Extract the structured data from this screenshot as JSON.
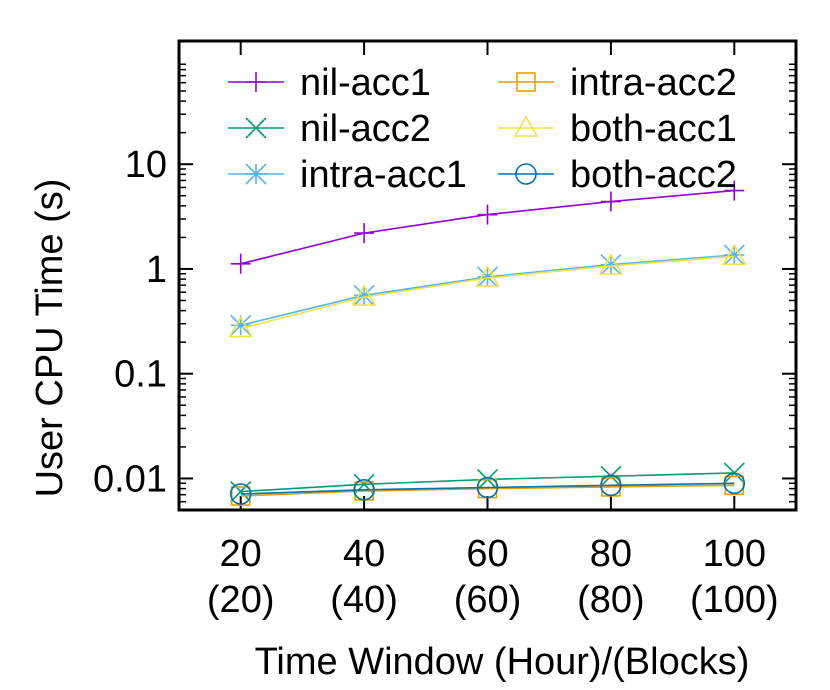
{
  "chart_data": {
    "type": "line",
    "ylabel": "User CPU Time (s)",
    "xlabel": "Time Window (Hour)/(Blocks)",
    "yscale": "log",
    "ylim": [
      0.005,
      150
    ],
    "xlim": [
      10,
      110
    ],
    "grid": false,
    "legend_position": "top-left",
    "x": [
      20,
      40,
      60,
      80,
      100
    ],
    "x_tick_labels": [
      {
        "line1": "20",
        "line2": "(20)"
      },
      {
        "line1": "40",
        "line2": "(40)"
      },
      {
        "line1": "60",
        "line2": "(60)"
      },
      {
        "line1": "80",
        "line2": "(80)"
      },
      {
        "line1": "100",
        "line2": "(100)"
      }
    ],
    "y_ticks": [
      {
        "value": 10,
        "label": "10"
      },
      {
        "value": 1,
        "label": "1"
      },
      {
        "value": 0.1,
        "label": "0.1"
      },
      {
        "value": 0.01,
        "label": "0.01"
      }
    ],
    "series": [
      {
        "name": "nil-acc1",
        "color": "#9400d3",
        "marker": "plus",
        "values": [
          1.12,
          2.2,
          3.3,
          4.4,
          5.6
        ]
      },
      {
        "name": "nil-acc2",
        "color": "#009e73",
        "marker": "cross",
        "values": [
          0.0075,
          0.0088,
          0.0098,
          0.0105,
          0.0113
        ]
      },
      {
        "name": "intra-acc1",
        "color": "#56b4e9",
        "marker": "star",
        "values": [
          0.29,
          0.56,
          0.84,
          1.1,
          1.36
        ]
      },
      {
        "name": "intra-acc2",
        "color": "#e69f00",
        "marker": "square",
        "values": [
          0.0068,
          0.0076,
          0.008,
          0.0083,
          0.0086
        ]
      },
      {
        "name": "both-acc1",
        "color": "#f0e442",
        "marker": "triangle",
        "values": [
          0.27,
          0.54,
          0.82,
          1.07,
          1.32
        ]
      },
      {
        "name": "both-acc2",
        "color": "#0072b2",
        "marker": "circle",
        "values": [
          0.0071,
          0.0078,
          0.0082,
          0.0086,
          0.009
        ]
      }
    ]
  }
}
